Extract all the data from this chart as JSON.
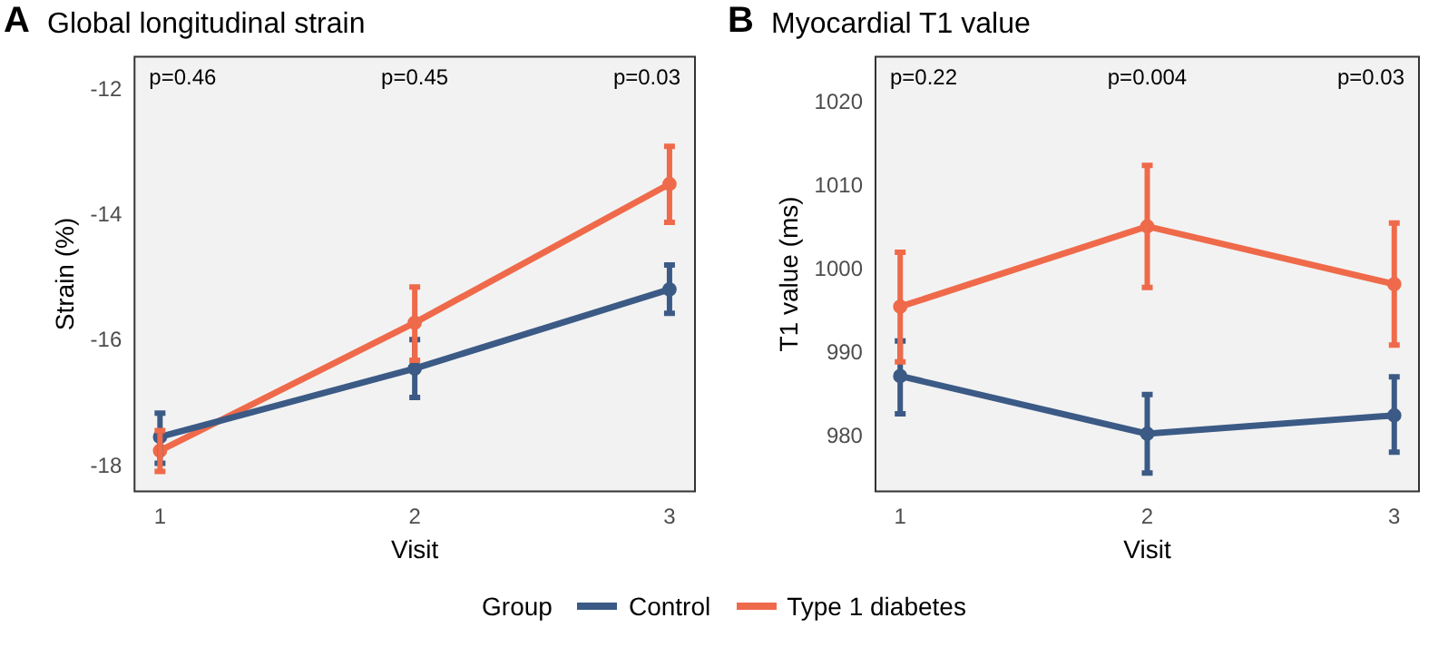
{
  "chart_data": [
    {
      "type": "line",
      "title": "Global longitudinal strain",
      "xlabel": "Visit",
      "ylabel": "Strain (%)",
      "legend_title": "Group",
      "legend": "bottom",
      "grid": false,
      "marker": "circle",
      "line_style": "solid",
      "x": [
        1,
        2,
        3
      ],
      "xlim": [
        0.9,
        3.1
      ],
      "xticks": [
        1,
        2,
        3
      ],
      "ylim": [
        -18.4,
        -11.47
      ],
      "yticks": [
        -18,
        -16,
        -14,
        -12
      ],
      "series": [
        {
          "name": "Control",
          "color": "#3b5a85",
          "values": [
            -17.53,
            -16.44,
            -15.18
          ],
          "errors": [
            [
              -17.95,
              -17.15
            ],
            [
              -16.9,
              -15.98
            ],
            [
              -15.56,
              -14.79
            ]
          ]
        },
        {
          "name": "Type 1 diabetes",
          "color": "#ef6a4a",
          "values": [
            -17.75,
            -15.71,
            -13.5
          ],
          "errors": [
            [
              -18.08,
              -17.43
            ],
            [
              -16.31,
              -15.14
            ],
            [
              -14.11,
              -12.9
            ]
          ]
        }
      ],
      "annotations": [
        "A",
        "p=0.46",
        "p=0.45",
        "p=0.03"
      ]
    },
    {
      "type": "line",
      "title": "Myocardial T1 value",
      "xlabel": "Visit",
      "ylabel": "T1 value (ms)",
      "grid": false,
      "marker": "circle",
      "line_style": "solid",
      "x": [
        1,
        2,
        3
      ],
      "xlim": [
        0.9,
        3.1
      ],
      "xticks": [
        1,
        2,
        3
      ],
      "ylim": [
        973.5,
        1025.5
      ],
      "yticks": [
        980,
        990,
        1000,
        1010,
        1020
      ],
      "series": [
        {
          "color": "#3b5a85",
          "values": [
            987.3,
            980.4,
            982.6
          ],
          "errors": [
            [
              982.8,
              991.5
            ],
            [
              975.7,
              985.1
            ],
            [
              978.2,
              987.2
            ]
          ]
        },
        {
          "color": "#ef6a4a",
          "values": [
            995.6,
            1005.2,
            998.3
          ],
          "errors": [
            [
              989.0,
              1002.1
            ],
            [
              997.9,
              1012.5
            ],
            [
              991.0,
              1005.6
            ]
          ]
        }
      ],
      "annotations": [
        "B",
        "p=0.22",
        "p=0.004",
        "p=0.03"
      ]
    }
  ]
}
